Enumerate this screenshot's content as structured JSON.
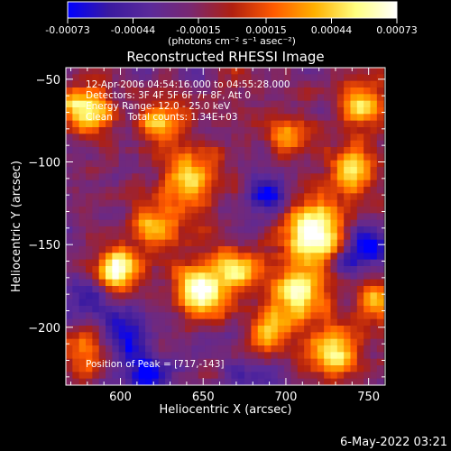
{
  "colorbar": {
    "min": -0.00073,
    "max": 0.00073,
    "tick_labels": [
      "-0.00073",
      "-0.00044",
      "-0.00015",
      "0.00015",
      "0.00044",
      "0.00073"
    ],
    "tick_values": [
      -0.00073,
      -0.00044,
      -0.00015,
      0.00015,
      0.00044,
      0.00073
    ],
    "units_label": "(photons cm⁻² s⁻¹ asec⁻²)",
    "colormap": [
      "#0000ff",
      "#3a1aa0",
      "#5b2a9a",
      "#7a2870",
      "#b02010",
      "#ff5a00",
      "#ffb000",
      "#ffff80",
      "#ffffff"
    ]
  },
  "chart_data": {
    "type": "heatmap",
    "title": "Reconstructed RHESSI Image",
    "xlabel": "Heliocentric X (arcsec)",
    "ylabel": "Heliocentric Y (arcsec)",
    "xlim": [
      567,
      760
    ],
    "ylim": [
      -235,
      -43
    ],
    "xticks": [
      600,
      650,
      700,
      750
    ],
    "yticks": [
      -50,
      -100,
      -150,
      -200
    ],
    "grid": false,
    "peak_position": [
      717,
      -143
    ],
    "hotspots": [
      {
        "x": 580,
        "y": -68,
        "intensity": 0.85,
        "spread": 10
      },
      {
        "x": 625,
        "y": -75,
        "intensity": 0.6,
        "spread": 10
      },
      {
        "x": 642,
        "y": -110,
        "intensity": 0.75,
        "spread": 12
      },
      {
        "x": 700,
        "y": -85,
        "intensity": 0.55,
        "spread": 10
      },
      {
        "x": 745,
        "y": -65,
        "intensity": 0.7,
        "spread": 10
      },
      {
        "x": 598,
        "y": -165,
        "intensity": 0.95,
        "spread": 9
      },
      {
        "x": 650,
        "y": -178,
        "intensity": 0.95,
        "spread": 11
      },
      {
        "x": 670,
        "y": -165,
        "intensity": 0.7,
        "spread": 9
      },
      {
        "x": 717,
        "y": -143,
        "intensity": 1.0,
        "spread": 14
      },
      {
        "x": 708,
        "y": -180,
        "intensity": 0.85,
        "spread": 11
      },
      {
        "x": 728,
        "y": -215,
        "intensity": 0.95,
        "spread": 10
      },
      {
        "x": 690,
        "y": -205,
        "intensity": 0.7,
        "spread": 10
      },
      {
        "x": 740,
        "y": -105,
        "intensity": 0.75,
        "spread": 10
      },
      {
        "x": 755,
        "y": -185,
        "intensity": 0.6,
        "spread": 9
      },
      {
        "x": 580,
        "y": -215,
        "intensity": 0.55,
        "spread": 10
      },
      {
        "x": 620,
        "y": -140,
        "intensity": 0.55,
        "spread": 10
      }
    ],
    "coldspots": [
      {
        "x": 600,
        "y": -205,
        "intensity": 0.8,
        "spread": 12
      },
      {
        "x": 580,
        "y": -180,
        "intensity": 0.6,
        "spread": 8
      },
      {
        "x": 750,
        "y": -150,
        "intensity": 0.9,
        "spread": 9
      },
      {
        "x": 735,
        "y": -160,
        "intensity": 0.6,
        "spread": 8
      },
      {
        "x": 690,
        "y": -120,
        "intensity": 0.7,
        "spread": 10
      },
      {
        "x": 615,
        "y": -230,
        "intensity": 0.8,
        "spread": 9
      },
      {
        "x": 680,
        "y": -230,
        "intensity": 0.6,
        "spread": 10
      }
    ]
  },
  "annotations": {
    "lines": [
      "12-Apr-2006 04:54:16.000 to 04:55:28.000",
      "Detectors: 3F 4F 5F 6F 7F 8F, Att 0",
      "Energy Range: 12.0 - 25.0 keV",
      "Clean     Total counts: 1.34E+03"
    ],
    "peak_label": "Position of Peak = [717,-143]"
  },
  "footer": {
    "timestamp": "6-May-2022 03:21"
  }
}
